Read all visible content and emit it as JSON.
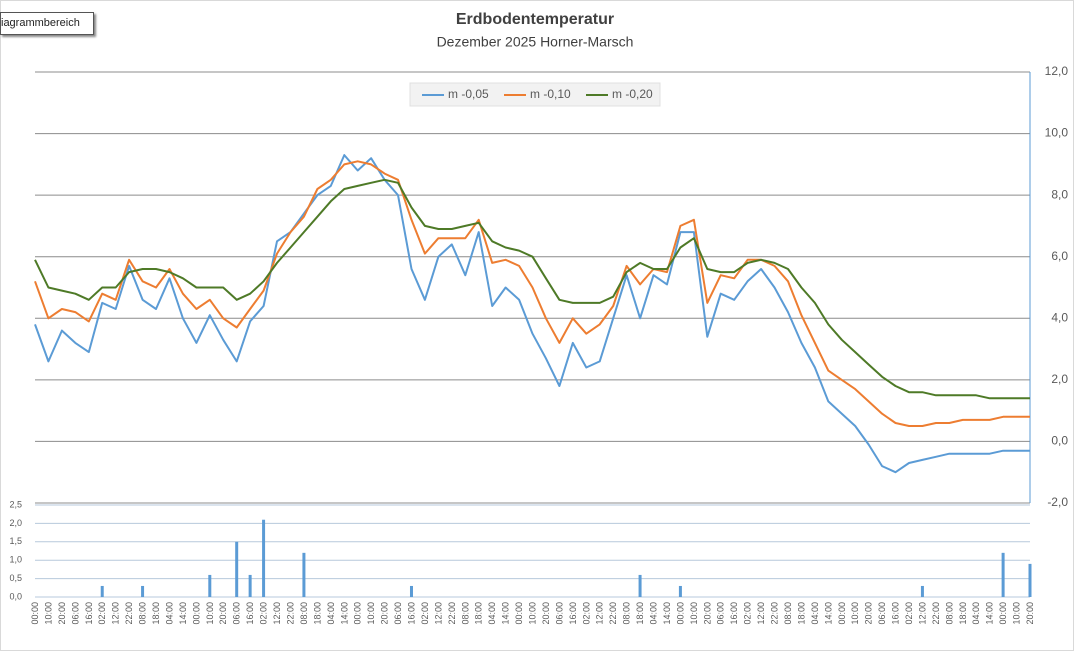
{
  "tooltip": "iagrammbereich",
  "chart_data": [
    {
      "type": "line",
      "title": "Erdbodentemperatur",
      "subtitle": "Dezember 2025 Horner-Marsch",
      "categories": [
        "00:00",
        "10:00",
        "20:00",
        "06:00",
        "16:00",
        "02:00",
        "12:00",
        "22:00",
        "08:00",
        "18:00",
        "04:00",
        "14:00",
        "00:00",
        "10:00",
        "20:00",
        "06:00",
        "16:00",
        "02:00",
        "12:00",
        "22:00",
        "08:00",
        "18:00",
        "04:00",
        "14:00",
        "00:00",
        "10:00",
        "20:00",
        "06:00",
        "16:00",
        "02:00",
        "12:00",
        "22:00",
        "08:00",
        "18:00",
        "04:00",
        "14:00",
        "00:00",
        "10:00",
        "20:00",
        "06:00",
        "16:00",
        "02:00",
        "12:00",
        "22:00",
        "08:00",
        "18:00",
        "04:00",
        "14:00",
        "00:00",
        "10:00",
        "20:00",
        "06:00",
        "16:00",
        "02:00",
        "12:00",
        "22:00",
        "08:00",
        "18:00",
        "04:00",
        "14:00",
        "00:00",
        "10:00",
        "20:00",
        "06:00",
        "16:00",
        "02:00",
        "12:00",
        "22:00",
        "08:00",
        "18:00",
        "04:00",
        "14:00",
        "00:00",
        "10:00",
        "20:00"
      ],
      "series": [
        {
          "name": "m -0,05",
          "color": "#5b9bd5",
          "values": [
            3.8,
            2.6,
            3.6,
            3.2,
            2.9,
            4.5,
            4.3,
            5.7,
            4.6,
            4.3,
            5.3,
            4.0,
            3.2,
            4.1,
            3.3,
            2.6,
            3.9,
            4.4,
            6.5,
            6.8,
            7.4,
            8.0,
            8.3,
            9.3,
            8.8,
            9.2,
            8.5,
            8.0,
            5.6,
            4.6,
            6.0,
            6.4,
            5.4,
            6.8,
            4.4,
            5.0,
            4.6,
            3.5,
            2.7,
            1.8,
            3.2,
            2.4,
            2.6,
            4.0,
            5.4,
            4.0,
            5.4,
            5.1,
            6.8,
            6.8,
            3.4,
            4.8,
            4.6,
            5.2,
            5.6,
            5.0,
            4.2,
            3.2,
            2.4,
            1.3,
            0.9,
            0.5,
            -0.1,
            -0.8,
            -1.0,
            -0.7,
            -0.6,
            -0.5,
            -0.4,
            -0.4,
            -0.4,
            -0.4,
            -0.3,
            -0.3,
            -0.3
          ]
        },
        {
          "name": "m -0,10",
          "color": "#ed7d31",
          "values": [
            5.2,
            4.0,
            4.3,
            4.2,
            3.9,
            4.8,
            4.6,
            5.9,
            5.2,
            5.0,
            5.6,
            4.8,
            4.3,
            4.6,
            4.0,
            3.7,
            4.3,
            4.9,
            6.1,
            6.8,
            7.3,
            8.2,
            8.5,
            9.0,
            9.1,
            9.0,
            8.7,
            8.5,
            7.2,
            6.1,
            6.6,
            6.6,
            6.6,
            7.2,
            5.8,
            5.9,
            5.7,
            5.0,
            4.0,
            3.2,
            4.0,
            3.5,
            3.8,
            4.4,
            5.7,
            5.1,
            5.6,
            5.5,
            7.0,
            7.2,
            4.5,
            5.4,
            5.3,
            5.9,
            5.9,
            5.7,
            5.2,
            4.1,
            3.2,
            2.3,
            2.0,
            1.7,
            1.3,
            0.9,
            0.6,
            0.5,
            0.5,
            0.6,
            0.6,
            0.7,
            0.7,
            0.7,
            0.8,
            0.8,
            0.8
          ]
        },
        {
          "name": "m -0,20",
          "color": "#4e7a27",
          "values": [
            5.9,
            5.0,
            4.9,
            4.8,
            4.6,
            5.0,
            5.0,
            5.5,
            5.6,
            5.6,
            5.5,
            5.3,
            5.0,
            5.0,
            5.0,
            4.6,
            4.8,
            5.2,
            5.8,
            6.3,
            6.8,
            7.3,
            7.8,
            8.2,
            8.3,
            8.4,
            8.5,
            8.4,
            7.6,
            7.0,
            6.9,
            6.9,
            7.0,
            7.1,
            6.5,
            6.3,
            6.2,
            6.0,
            5.3,
            4.6,
            4.5,
            4.5,
            4.5,
            4.7,
            5.5,
            5.8,
            5.6,
            5.6,
            6.3,
            6.6,
            5.6,
            5.5,
            5.5,
            5.8,
            5.9,
            5.8,
            5.6,
            5.0,
            4.5,
            3.8,
            3.3,
            2.9,
            2.5,
            2.1,
            1.8,
            1.6,
            1.6,
            1.5,
            1.5,
            1.5,
            1.5,
            1.4,
            1.4,
            1.4,
            1.4
          ]
        }
      ],
      "ylim": [
        -2,
        12
      ],
      "yticks": [
        {
          "value": -2,
          "label": "-2,0"
        },
        {
          "value": 0,
          "label": "0,0"
        },
        {
          "value": 2,
          "label": "2,0"
        },
        {
          "value": 4,
          "label": "4,0"
        },
        {
          "value": 6,
          "label": "6,0"
        },
        {
          "value": 8,
          "label": "8,0"
        },
        {
          "value": 10,
          "label": "10,0"
        },
        {
          "value": 12,
          "label": "12,0"
        }
      ],
      "y_axis_side": "right",
      "grid": true,
      "legend": "top"
    },
    {
      "type": "bar",
      "color": "#5b9bd5",
      "values": [
        0,
        0,
        0,
        0,
        0,
        0.3,
        0,
        0,
        0.3,
        0,
        0,
        0,
        0,
        0.6,
        0,
        1.5,
        0.6,
        2.1,
        0,
        0,
        1.2,
        0,
        0,
        0,
        0,
        0,
        0,
        0,
        0.3,
        0,
        0,
        0,
        0,
        0,
        0,
        0,
        0,
        0,
        0,
        0,
        0,
        0,
        0,
        0,
        0,
        0.6,
        0,
        0,
        0.3,
        0,
        0,
        0,
        0,
        0,
        0,
        0,
        0,
        0,
        0,
        0,
        0,
        0,
        0,
        0,
        0,
        0,
        0.3,
        0,
        0,
        0,
        0,
        0,
        1.2,
        0,
        0.9
      ],
      "ylim": [
        0,
        2.5
      ],
      "yticks": [
        {
          "value": 0,
          "label": "0,0"
        },
        {
          "value": 0.5,
          "label": "0,5"
        },
        {
          "value": 1,
          "label": "1,0"
        },
        {
          "value": 1.5,
          "label": "1,5"
        },
        {
          "value": 2,
          "label": "2,0"
        },
        {
          "value": 2.5,
          "label": "2,5"
        }
      ],
      "y_axis_side": "left",
      "grid": true
    }
  ]
}
